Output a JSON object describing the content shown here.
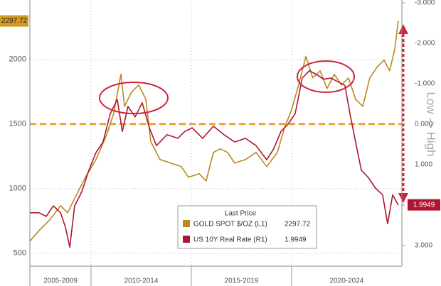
{
  "chart_data": {
    "type": "line",
    "xlim": [
      2006.95,
      2025.5
    ],
    "x_separators": [
      2010,
      2015,
      2020
    ],
    "x_period_labels": [
      "2005-2009",
      "2010-2014",
      "2015-2019",
      "2020-2024"
    ],
    "ylim": [
      400,
      2460
    ],
    "yticks": [
      500,
      1000,
      1500,
      2000
    ],
    "y2lim": [
      -3.07,
      3.51
    ],
    "y2_inverted": true,
    "y2ticks": [
      {
        "value": -3,
        "label": "-3.000"
      },
      {
        "value": -2,
        "label": "-2.000"
      },
      {
        "value": -1,
        "label": "-1.000"
      },
      {
        "value": 0,
        "label": "0.000"
      },
      {
        "value": 1,
        "label": "1.000"
      },
      {
        "value": 2,
        "label": "2.000"
      },
      {
        "value": 3,
        "label": "3.000"
      }
    ],
    "y2label": "Low -> High",
    "grid": true,
    "reference_line": {
      "value": 1500,
      "color": "#f0a030"
    },
    "legend_title": "Last Price",
    "series": [
      {
        "name": "GOLD SPOT $/OZ (L1)",
        "color": "#b8891c",
        "axis": "y",
        "x": [
          2006.95,
          2007.41,
          2007.94,
          2008.48,
          2008.83,
          2009.18,
          2009.72,
          2010.25,
          2010.78,
          2011.13,
          2011.49,
          2011.67,
          2012.02,
          2012.38,
          2012.73,
          2012.98,
          2013.44,
          2013.97,
          2014.5,
          2014.86,
          2015.39,
          2015.74,
          2016.1,
          2016.45,
          2016.81,
          2017.16,
          2017.7,
          2018.23,
          2018.76,
          2019.29,
          2019.65,
          2020.0,
          2020.35,
          2020.71,
          2021.06,
          2021.42,
          2021.77,
          2022.13,
          2022.48,
          2022.84,
          2023.19,
          2023.55,
          2023.9,
          2024.26,
          2024.61,
          2024.89,
          2025.14,
          2025.32
        ],
        "values": [
          593,
          676,
          758,
          868,
          813,
          923,
          1088,
          1225,
          1418,
          1582,
          1885,
          1637,
          1747,
          1802,
          1692,
          1363,
          1225,
          1198,
          1170,
          1088,
          1115,
          1060,
          1280,
          1308,
          1280,
          1198,
          1225,
          1280,
          1170,
          1280,
          1473,
          1610,
          1802,
          2022,
          1857,
          1912,
          1775,
          1885,
          1802,
          1857,
          1692,
          1637,
          1857,
          1940,
          1995,
          1912,
          2077,
          2297.72
        ]
      },
      {
        "name": "US 10Y Real Rate (R1)",
        "color": "#b0152f",
        "axis": "y2",
        "x": [
          2006.95,
          2007.41,
          2007.77,
          2008.12,
          2008.48,
          2008.72,
          2008.94,
          2009.18,
          2009.54,
          2009.89,
          2010.25,
          2010.6,
          2010.96,
          2011.31,
          2011.56,
          2011.84,
          2012.2,
          2012.55,
          2012.91,
          2013.26,
          2013.79,
          2014.33,
          2014.68,
          2015.04,
          2015.57,
          2016.1,
          2016.63,
          2017.16,
          2017.7,
          2018.23,
          2018.76,
          2019.11,
          2019.47,
          2019.82,
          2020.18,
          2020.53,
          2020.89,
          2021.24,
          2021.6,
          2021.95,
          2022.3,
          2022.66,
          2022.91,
          2023.19,
          2023.48,
          2023.83,
          2024.18,
          2024.54,
          2024.79,
          2025.04,
          2025.32
        ],
        "values": [
          2.19,
          2.19,
          2.28,
          2.02,
          2.19,
          2.54,
          3.04,
          2.02,
          1.67,
          1.14,
          0.7,
          0.44,
          -0.26,
          -0.61,
          0.18,
          -0.44,
          -0.18,
          -0.53,
          0.09,
          0.53,
          0.26,
          0.35,
          0.18,
          0.09,
          0.35,
          0.05,
          0.26,
          0.44,
          0.35,
          0.53,
          0.88,
          0.61,
          0.18,
          0,
          -0.26,
          -1.14,
          -1.32,
          -1.23,
          -1.11,
          -1.14,
          -1.05,
          -0.96,
          -0.26,
          0.44,
          1.14,
          1.32,
          1.58,
          1.75,
          2.46,
          1.75,
          1.9949
        ]
      }
    ]
  }
}
